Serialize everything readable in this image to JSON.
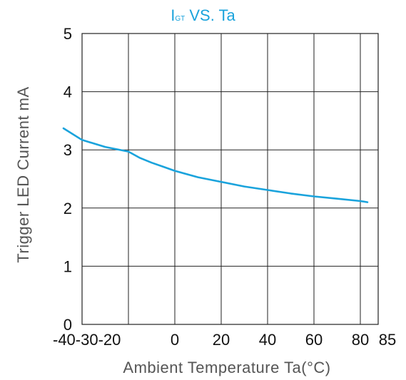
{
  "chart_data": {
    "type": "line",
    "title": {
      "main": "I",
      "sub": "GT",
      "rest": " VS. Ta"
    },
    "xlabel": "Ambient Temperature Ta(°C)",
    "ylabel": "Trigger LED Current mA",
    "xlim": [
      -40,
      85
    ],
    "ylim": [
      0,
      5
    ],
    "x_ticks": [
      -40,
      -30,
      -20,
      0,
      20,
      40,
      60,
      80,
      85
    ],
    "x_tick_labels": [
      "-40",
      "-30",
      "-20",
      "0",
      "20",
      "40",
      "60",
      "80",
      "85"
    ],
    "x_tick_label_text": "-40-30-20",
    "y_ticks": [
      0,
      1,
      2,
      3,
      4,
      5
    ],
    "y_tick_labels": [
      "0",
      "1",
      "2",
      "3",
      "4",
      "5"
    ],
    "grid": true,
    "colors": {
      "line": "#1aa3dc",
      "grid": "#222222",
      "title": "#1aa3dc",
      "labels": "#555555"
    },
    "series": [
      {
        "x": [
          -34,
          -30,
          -25,
          -20,
          -15,
          -10,
          -5,
          0,
          10,
          20,
          30,
          40,
          50,
          60,
          70,
          80,
          82
        ],
        "y": [
          3.37,
          3.17,
          3.05,
          2.97,
          2.86,
          2.78,
          2.71,
          2.64,
          2.53,
          2.45,
          2.37,
          2.31,
          2.25,
          2.2,
          2.16,
          2.12,
          2.1
        ]
      }
    ]
  }
}
